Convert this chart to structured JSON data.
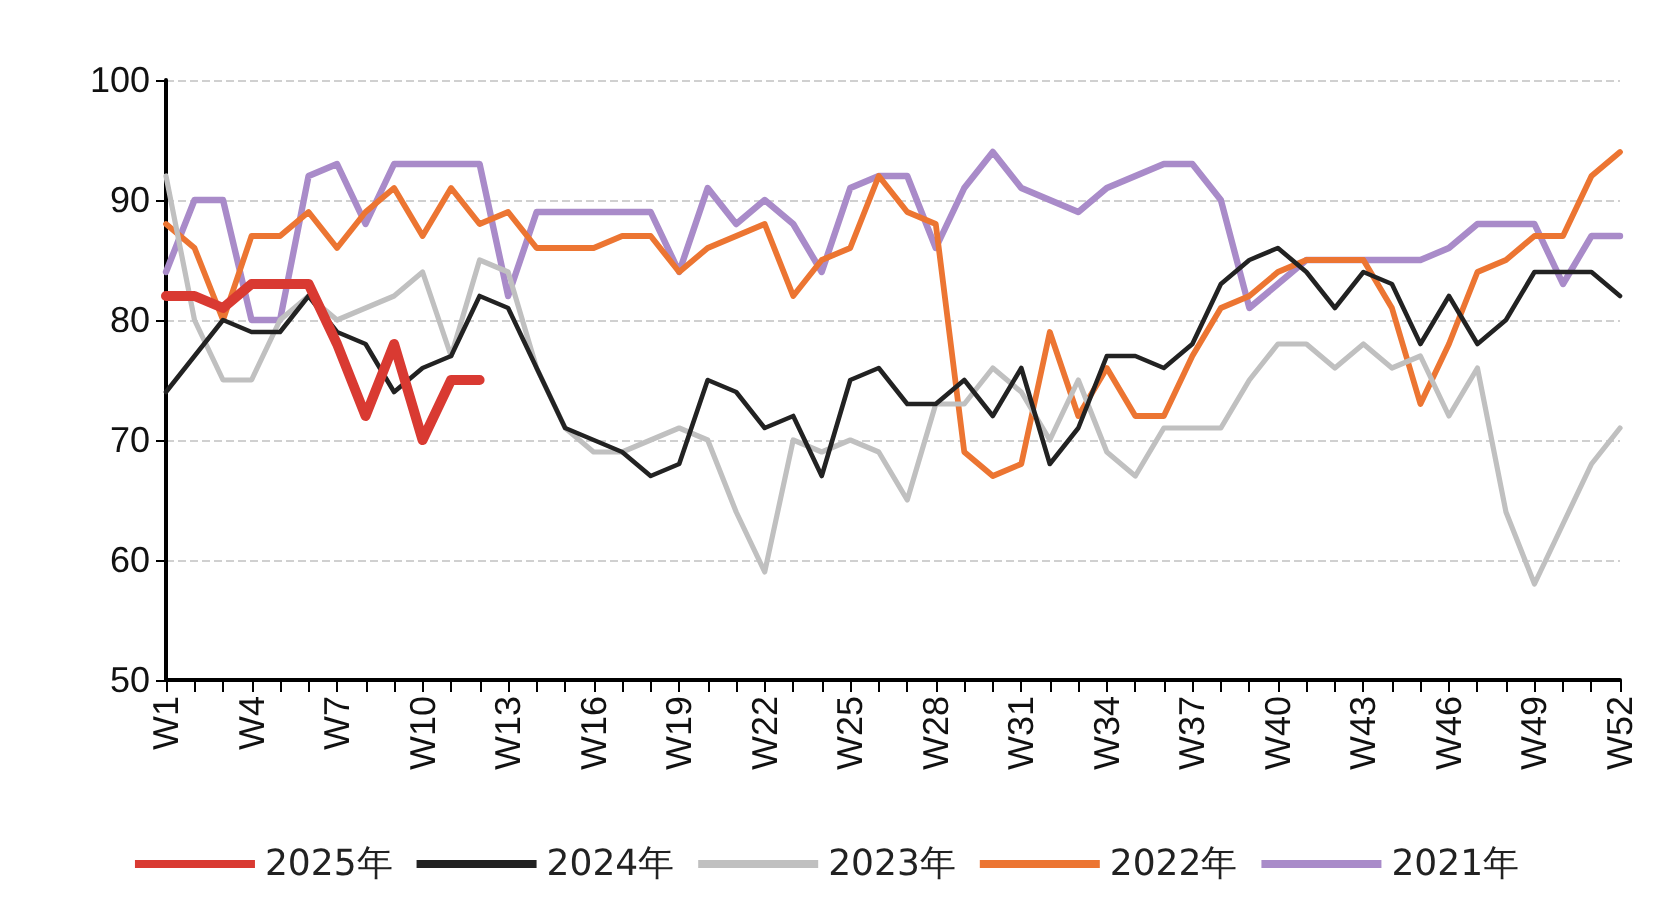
{
  "chart_data": {
    "type": "line",
    "categories": [
      "W1",
      null,
      null,
      "W4",
      null,
      null,
      "W7",
      null,
      null,
      "W10",
      null,
      null,
      "W13",
      null,
      null,
      "W16",
      null,
      null,
      "W19",
      null,
      null,
      "W22",
      null,
      null,
      "W25",
      null,
      null,
      "W28",
      null,
      null,
      "W31",
      null,
      null,
      "W34",
      null,
      null,
      "W37",
      null,
      null,
      "W40",
      null,
      null,
      "W43",
      null,
      null,
      "W46",
      null,
      null,
      "W49",
      null,
      null,
      "W52"
    ],
    "series": [
      {
        "name": "2025年",
        "color": "#d93a32",
        "values": [
          82,
          82,
          81,
          83,
          83,
          83,
          78,
          72,
          78,
          70,
          75,
          75,
          null,
          null,
          null,
          null,
          null,
          null,
          null,
          null,
          null,
          null,
          null,
          null,
          null,
          null,
          null,
          null,
          null,
          null,
          null,
          null,
          null,
          null,
          null,
          null,
          null,
          null,
          null,
          null,
          null,
          null,
          null,
          null,
          null,
          null,
          null,
          null,
          null,
          null,
          null,
          null
        ]
      },
      {
        "name": "2024年",
        "color": "#222222",
        "values": [
          74,
          77,
          80,
          79,
          79,
          82,
          79,
          78,
          74,
          76,
          77,
          82,
          81,
          76,
          71,
          70,
          69,
          67,
          68,
          75,
          74,
          71,
          72,
          67,
          75,
          76,
          73,
          73,
          75,
          72,
          76,
          68,
          71,
          77,
          77,
          76,
          78,
          83,
          85,
          86,
          84,
          81,
          84,
          83,
          78,
          82,
          78,
          80,
          84,
          84,
          84,
          82
        ]
      },
      {
        "name": "2023年",
        "color": "#c0c0c0",
        "values": [
          92,
          80,
          75,
          75,
          80,
          82,
          80,
          81,
          82,
          84,
          77,
          85,
          84,
          76,
          71,
          69,
          69,
          70,
          71,
          70,
          64,
          59,
          70,
          69,
          70,
          69,
          65,
          73,
          73,
          76,
          74,
          70,
          75,
          69,
          67,
          71,
          71,
          71,
          75,
          78,
          78,
          76,
          78,
          76,
          77,
          72,
          76,
          64,
          58,
          63,
          68,
          71
        ]
      },
      {
        "name": "2022年",
        "color": "#ec7532",
        "values": [
          88,
          86,
          80,
          87,
          87,
          89,
          86,
          89,
          91,
          87,
          91,
          88,
          89,
          86,
          86,
          86,
          87,
          87,
          84,
          86,
          87,
          88,
          82,
          85,
          86,
          92,
          89,
          88,
          69,
          67,
          68,
          79,
          72,
          76,
          72,
          72,
          77,
          81,
          82,
          84,
          85,
          85,
          85,
          81,
          73,
          78,
          84,
          85,
          87,
          87,
          92,
          94
        ]
      },
      {
        "name": "2021年",
        "color": "#a98bc9",
        "values": [
          84,
          90,
          90,
          80,
          80,
          92,
          93,
          88,
          93,
          93,
          93,
          93,
          82,
          89,
          89,
          89,
          89,
          89,
          84,
          91,
          88,
          90,
          88,
          84,
          91,
          92,
          92,
          86,
          91,
          94,
          91,
          90,
          89,
          91,
          92,
          93,
          93,
          90,
          81,
          83,
          85,
          85,
          85,
          85,
          85,
          86,
          88,
          88,
          88,
          83,
          87,
          87
        ]
      }
    ],
    "ylim": [
      50,
      100
    ],
    "yticks": [
      50,
      60,
      70,
      80,
      90,
      100
    ],
    "grid": "y",
    "legend": "bottom",
    "marker": "none",
    "line_style": "solid"
  }
}
